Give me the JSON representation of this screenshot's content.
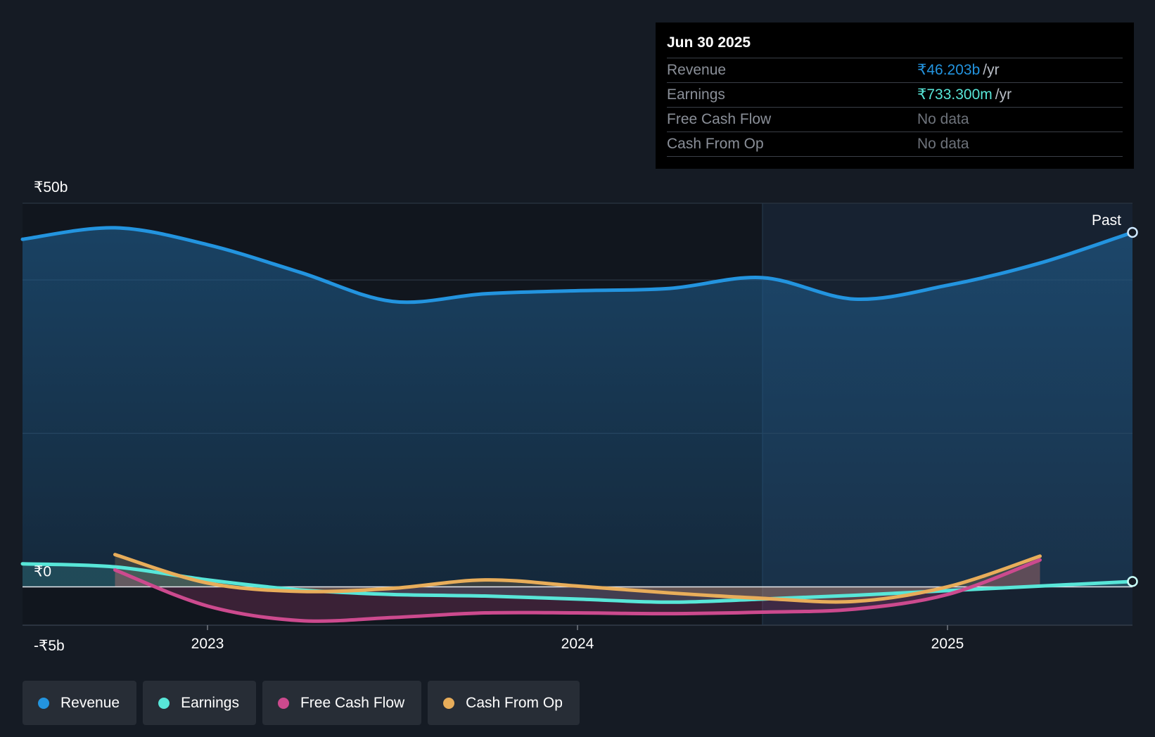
{
  "chart_data": {
    "type": "line",
    "title": "",
    "ylim": [
      -5,
      50
    ],
    "y_ticks": [
      "₹50b",
      "₹0",
      "-₹5b"
    ],
    "x_ticks": [
      "2023",
      "2024",
      "2025"
    ],
    "x_range": [
      2022.5,
      2025.5
    ],
    "divider_x": 2024.5,
    "past_label": "Past",
    "series": [
      {
        "name": "Revenue",
        "color": "#2394df",
        "x": [
          2022.5,
          2022.75,
          2023.0,
          2023.25,
          2023.5,
          2023.75,
          2024.0,
          2024.25,
          2024.5,
          2024.75,
          2025.0,
          2025.25,
          2025.5
        ],
        "values": [
          45.3,
          46.8,
          44.6,
          41.0,
          37.2,
          38.2,
          38.6,
          38.9,
          40.3,
          37.5,
          39.3,
          42.2,
          46.2
        ]
      },
      {
        "name": "Earnings",
        "color": "#58e6d8",
        "x": [
          2022.5,
          2022.75,
          2023.0,
          2023.25,
          2023.5,
          2023.75,
          2024.0,
          2024.25,
          2024.5,
          2024.75,
          2025.0,
          2025.25,
          2025.5
        ],
        "values": [
          3.0,
          2.6,
          0.9,
          -0.4,
          -1.0,
          -1.2,
          -1.6,
          -2.0,
          -1.6,
          -1.1,
          -0.5,
          0.1,
          0.7
        ]
      },
      {
        "name": "Free Cash Flow",
        "color": "#cc4a8e",
        "x": [
          2022.75,
          2023.0,
          2023.25,
          2023.5,
          2023.75,
          2024.0,
          2024.25,
          2024.5,
          2024.75,
          2025.0,
          2025.25
        ],
        "values": [
          2.2,
          -2.5,
          -4.4,
          -4.0,
          -3.4,
          -3.4,
          -3.5,
          -3.3,
          -2.9,
          -1.0,
          3.5
        ]
      },
      {
        "name": "Cash From Op",
        "color": "#e8ad5a",
        "x": [
          2022.75,
          2023.0,
          2023.25,
          2023.5,
          2023.75,
          2024.0,
          2024.25,
          2024.5,
          2024.75,
          2025.0,
          2025.25
        ],
        "values": [
          4.2,
          0.5,
          -0.6,
          -0.2,
          0.9,
          0.1,
          -0.8,
          -1.5,
          -1.9,
          0.0,
          4.0
        ]
      }
    ]
  },
  "tooltip": {
    "date": "Jun 30 2025",
    "rows": [
      {
        "label": "Revenue",
        "value": "₹46.203b",
        "unit": "/yr",
        "color": "#2394df"
      },
      {
        "label": "Earnings",
        "value": "₹733.300m",
        "unit": "/yr",
        "color": "#58e6d8"
      },
      {
        "label": "Free Cash Flow",
        "value": "No data",
        "unit": ""
      },
      {
        "label": "Cash From Op",
        "value": "No data",
        "unit": ""
      }
    ]
  },
  "legend": [
    {
      "label": "Revenue",
      "color": "#2394df"
    },
    {
      "label": "Earnings",
      "color": "#58e6d8"
    },
    {
      "label": "Free Cash Flow",
      "color": "#cc4a8e"
    },
    {
      "label": "Cash From Op",
      "color": "#e8ad5a"
    }
  ]
}
